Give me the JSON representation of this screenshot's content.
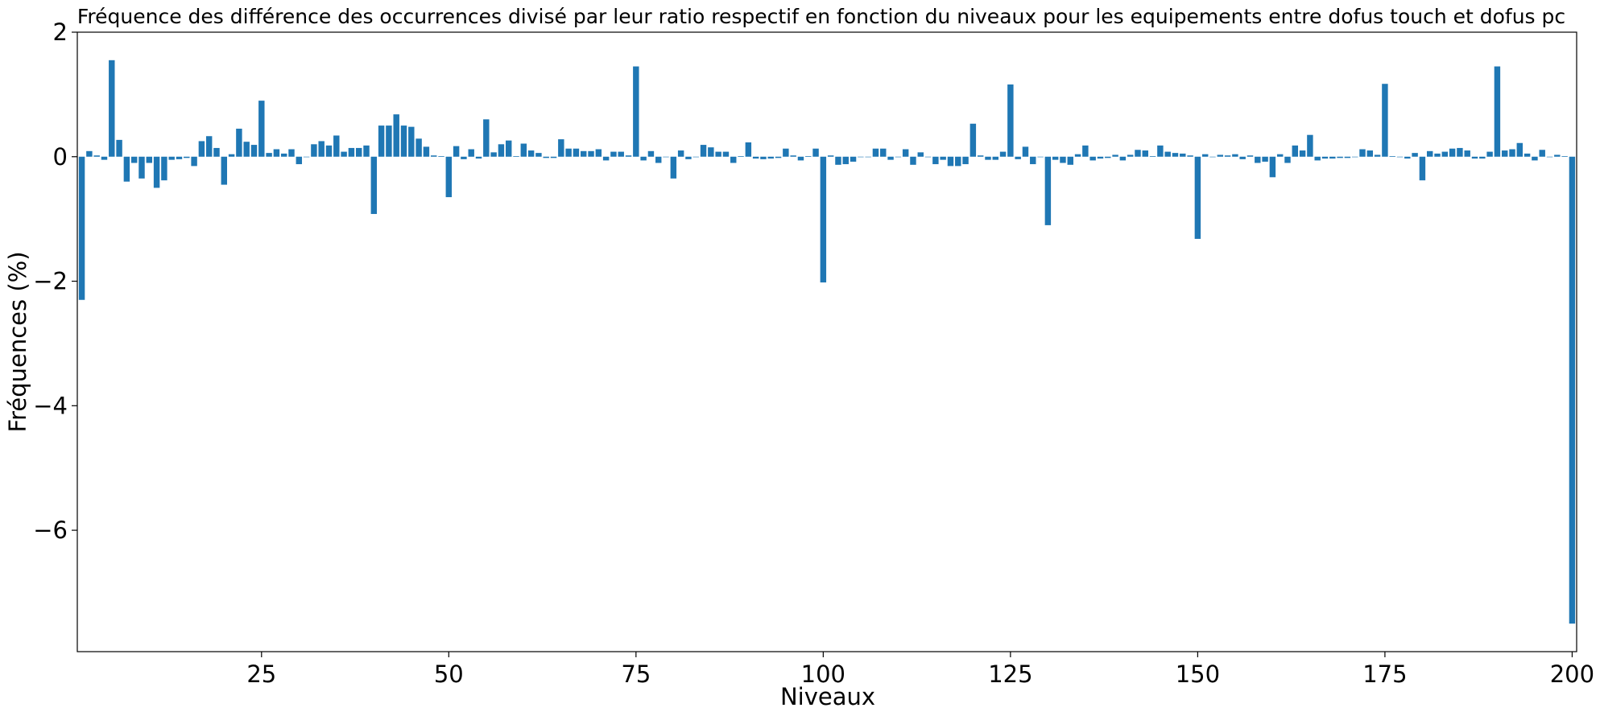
{
  "chart_data": {
    "type": "bar",
    "title": "Fréquence des différence des occurrences divisé par leur ratio respectif en fonction du niveaux pour les equipements entre dofus touch et dofus pc",
    "xlabel": "Niveaux",
    "ylabel": "Fréquences (%)",
    "xlim": [
      0.4,
      200.6
    ],
    "ylim": [
      -7.95,
      2
    ],
    "xticks": [
      25,
      50,
      75,
      100,
      125,
      150,
      175,
      200
    ],
    "xtick_labels": [
      "25",
      "50",
      "75",
      "100",
      "125",
      "150",
      "175",
      "200"
    ],
    "yticks": [
      2,
      0,
      -2,
      -4,
      -6
    ],
    "ytick_labels": [
      "2",
      "0",
      "−2",
      "−4",
      "−6"
    ],
    "bar_color": "#1f77b4",
    "grid": false,
    "x": [
      1,
      2,
      3,
      4,
      5,
      6,
      7,
      8,
      9,
      10,
      11,
      12,
      13,
      14,
      15,
      16,
      17,
      18,
      19,
      20,
      21,
      22,
      23,
      24,
      25,
      26,
      27,
      28,
      29,
      30,
      31,
      32,
      33,
      34,
      35,
      36,
      37,
      38,
      39,
      40,
      41,
      42,
      43,
      44,
      45,
      46,
      47,
      48,
      49,
      50,
      51,
      52,
      53,
      54,
      55,
      56,
      57,
      58,
      59,
      60,
      61,
      62,
      63,
      64,
      65,
      66,
      67,
      68,
      69,
      70,
      71,
      72,
      73,
      74,
      75,
      76,
      77,
      78,
      79,
      80,
      81,
      82,
      83,
      84,
      85,
      86,
      87,
      88,
      89,
      90,
      91,
      92,
      93,
      94,
      95,
      96,
      97,
      98,
      99,
      100,
      101,
      102,
      103,
      104,
      105,
      106,
      107,
      108,
      109,
      110,
      111,
      112,
      113,
      114,
      115,
      116,
      117,
      118,
      119,
      120,
      121,
      122,
      123,
      124,
      125,
      126,
      127,
      128,
      129,
      130,
      131,
      132,
      133,
      134,
      135,
      136,
      137,
      138,
      139,
      140,
      141,
      142,
      143,
      144,
      145,
      146,
      147,
      148,
      149,
      150,
      151,
      152,
      153,
      154,
      155,
      156,
      157,
      158,
      159,
      160,
      161,
      162,
      163,
      164,
      165,
      166,
      167,
      168,
      169,
      170,
      171,
      172,
      173,
      174,
      175,
      176,
      177,
      178,
      179,
      180,
      181,
      182,
      183,
      184,
      185,
      186,
      187,
      188,
      189,
      190,
      191,
      192,
      193,
      194,
      195,
      196,
      197,
      198,
      199,
      200
    ],
    "values": [
      -2.3,
      0.09,
      0.02,
      -0.05,
      1.55,
      0.27,
      -0.4,
      -0.1,
      -0.35,
      -0.1,
      -0.5,
      -0.38,
      -0.05,
      -0.04,
      -0.02,
      -0.15,
      0.25,
      0.33,
      0.14,
      -0.45,
      0.04,
      0.45,
      0.24,
      0.19,
      0.9,
      0.06,
      0.12,
      0.05,
      0.12,
      -0.12,
      0.0,
      0.2,
      0.25,
      0.18,
      0.34,
      0.08,
      0.14,
      0.14,
      0.18,
      -0.92,
      0.5,
      0.5,
      0.68,
      0.5,
      0.48,
      0.29,
      0.16,
      0.02,
      0.01,
      -0.65,
      0.17,
      -0.04,
      0.12,
      -0.03,
      0.6,
      0.07,
      0.2,
      0.26,
      0.01,
      0.21,
      0.1,
      0.06,
      -0.02,
      -0.02,
      0.28,
      0.13,
      0.13,
      0.09,
      0.09,
      0.12,
      -0.06,
      0.08,
      0.08,
      0.02,
      1.45,
      -0.06,
      0.09,
      -0.1,
      0.0,
      -0.35,
      0.1,
      -0.04,
      0.0,
      0.19,
      0.15,
      0.08,
      0.08,
      -0.1,
      0.01,
      0.23,
      -0.03,
      -0.04,
      -0.03,
      -0.02,
      0.13,
      0.02,
      -0.06,
      0.01,
      0.13,
      -2.02,
      0.02,
      -0.13,
      -0.12,
      -0.08,
      0.0,
      0.0,
      0.13,
      0.13,
      -0.05,
      0.0,
      0.12,
      -0.13,
      0.07,
      0.0,
      -0.12,
      -0.05,
      -0.15,
      -0.15,
      -0.12,
      0.53,
      0.02,
      -0.05,
      -0.05,
      0.08,
      1.16,
      -0.04,
      0.16,
      -0.12,
      0.0,
      -1.1,
      -0.05,
      -0.1,
      -0.13,
      0.04,
      0.18,
      -0.06,
      -0.03,
      -0.02,
      0.03,
      -0.06,
      0.03,
      0.11,
      0.1,
      0.01,
      0.18,
      0.08,
      0.06,
      0.05,
      0.02,
      -1.32,
      0.04,
      0.0,
      0.03,
      0.02,
      0.04,
      -0.04,
      0.02,
      -0.1,
      -0.08,
      -0.33,
      0.04,
      -0.1,
      0.18,
      0.1,
      0.35,
      -0.06,
      -0.03,
      -0.03,
      -0.02,
      -0.02,
      0.0,
      0.12,
      0.1,
      0.03,
      1.17,
      0.01,
      0.0,
      -0.03,
      0.06,
      -0.38,
      0.09,
      0.05,
      0.08,
      0.13,
      0.14,
      0.1,
      -0.03,
      -0.03,
      0.08,
      1.45,
      0.1,
      0.12,
      0.22,
      0.05,
      -0.06,
      0.11,
      0.0,
      0.03,
      0.01,
      -7.5
    ]
  }
}
